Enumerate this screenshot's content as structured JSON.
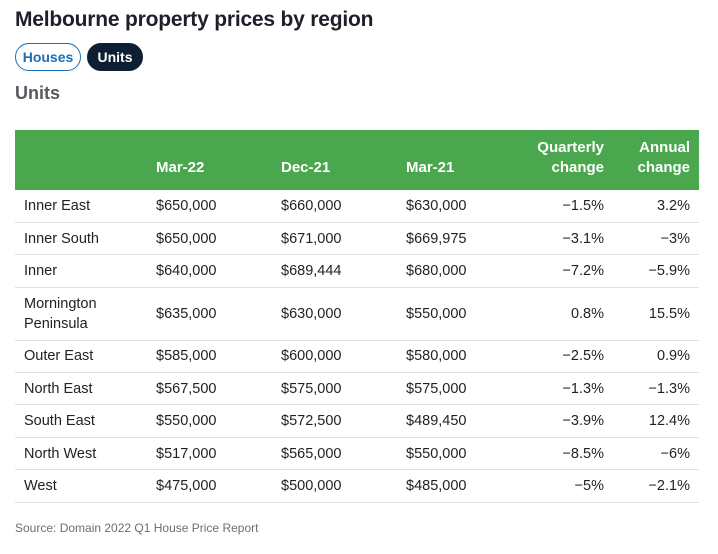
{
  "title": "Melbourne property prices by region",
  "toggle": {
    "houses_label": "Houses",
    "units_label": "Units",
    "selected": "Units"
  },
  "subtitle": "Units",
  "colors": {
    "header_bg": "#4aa74e",
    "active_toggle": "#0f1f33",
    "inactive_toggle_text": "#1c6fb5"
  },
  "chart_data": {
    "type": "table",
    "columns": [
      "",
      "Mar-22",
      "Dec-21",
      "Mar-21",
      "Quarterly change",
      "Annual change"
    ],
    "rows": [
      [
        "Inner East",
        "$650,000",
        "$660,000",
        "$630,000",
        "−1.5%",
        "3.2%"
      ],
      [
        "Inner South",
        "$650,000",
        "$671,000",
        "$669,975",
        "−3.1%",
        "−3%"
      ],
      [
        "Inner",
        "$640,000",
        "$689,444",
        "$680,000",
        "−7.2%",
        "−5.9%"
      ],
      [
        "Mornington Peninsula",
        "$635,000",
        "$630,000",
        "$550,000",
        "0.8%",
        "15.5%"
      ],
      [
        "Outer East",
        "$585,000",
        "$600,000",
        "$580,000",
        "−2.5%",
        "0.9%"
      ],
      [
        "North East",
        "$567,500",
        "$575,000",
        "$575,000",
        "−1.3%",
        "−1.3%"
      ],
      [
        "South East",
        "$550,000",
        "$572,500",
        "$489,450",
        "−3.9%",
        "12.4%"
      ],
      [
        "North West",
        "$517,000",
        "$565,000",
        "$550,000",
        "−8.5%",
        "−6%"
      ],
      [
        "West",
        "$475,000",
        "$500,000",
        "$485,000",
        "−5%",
        "−2.1%"
      ]
    ]
  },
  "source": "Source: Domain 2022 Q1 House Price Report"
}
